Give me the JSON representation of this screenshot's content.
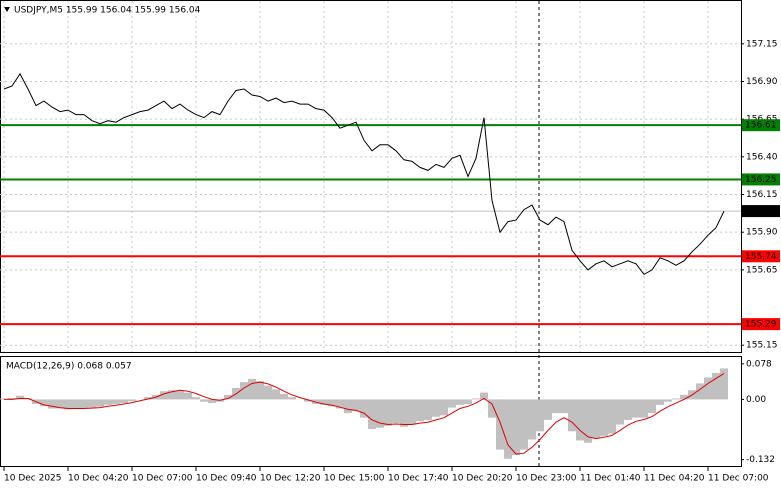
{
  "chart_data": [
    {
      "type": "line",
      "title": "USDJPY,M5 155.99 156.04 155.99 156.04",
      "color": "#000000",
      "grid": true,
      "x": [
        0,
        4,
        8,
        12,
        16,
        20,
        24,
        28,
        32,
        36,
        40,
        44,
        48,
        52,
        56,
        60,
        64,
        68,
        72,
        76,
        80,
        84,
        88,
        92,
        96,
        100,
        104,
        108,
        112,
        116,
        120,
        124,
        128,
        132,
        136,
        140,
        144,
        148,
        152,
        156,
        160,
        164,
        168,
        172,
        176,
        180,
        184,
        188,
        192,
        196,
        200,
        204,
        208,
        212,
        216,
        220,
        224,
        228,
        232,
        236,
        240,
        244,
        248,
        252,
        256,
        260,
        264,
        268,
        272,
        276,
        280,
        284,
        288,
        292,
        296,
        300,
        304,
        308,
        312,
        316,
        320,
        324,
        328,
        332,
        336,
        340,
        344,
        348,
        352,
        356,
        360
      ],
      "values": [
        156.85,
        156.87,
        156.95,
        156.85,
        156.74,
        156.77,
        156.73,
        156.7,
        156.71,
        156.68,
        156.68,
        156.64,
        156.62,
        156.64,
        156.63,
        156.66,
        156.68,
        156.7,
        156.71,
        156.74,
        156.77,
        156.72,
        156.75,
        156.71,
        156.68,
        156.66,
        156.7,
        156.68,
        156.77,
        156.84,
        156.85,
        156.81,
        156.8,
        156.77,
        156.79,
        156.76,
        156.77,
        156.75,
        156.75,
        156.72,
        156.71,
        156.66,
        156.59,
        156.61,
        156.63,
        156.51,
        156.44,
        156.48,
        156.48,
        156.44,
        156.38,
        156.37,
        156.33,
        156.31,
        156.35,
        156.33,
        156.39,
        156.41,
        156.27,
        156.39,
        156.66,
        156.11,
        155.9,
        155.97,
        155.98,
        156.05,
        156.08,
        155.98,
        155.95,
        156.0,
        155.97,
        155.78,
        155.71,
        155.65,
        155.69,
        155.71,
        155.67,
        155.69,
        155.71,
        155.69,
        155.62,
        155.65,
        155.73,
        155.71,
        155.68,
        155.71,
        155.77,
        155.82,
        155.88,
        155.93,
        156.04
      ],
      "xlim": [
        -2,
        368.5
      ],
      "ylim": [
        155.105,
        157.434
      ],
      "xticks": [
        {
          "value": 0,
          "label": "10 Dec 2025"
        },
        {
          "value": 32,
          "label": "10 Dec 04:20"
        },
        {
          "value": 64,
          "label": "10 Dec 07:00"
        },
        {
          "value": 96,
          "label": "10 Dec 09:40"
        },
        {
          "value": 128,
          "label": "10 Dec 12:20"
        },
        {
          "value": 160,
          "label": "10 Dec 15:00"
        },
        {
          "value": 192,
          "label": "10 Dec 17:40"
        },
        {
          "value": 224,
          "label": "10 Dec 20:20"
        },
        {
          "value": 256,
          "label": "10 Dec 23:00"
        },
        {
          "value": 288,
          "label": "11 Dec 01:40"
        },
        {
          "value": 320,
          "label": "11 Dec 04:20"
        },
        {
          "value": 352,
          "label": "11 Dec 07:00"
        }
      ],
      "yticks": [
        157.15,
        {
          "value": 156.9,
          "label": "156.90"
        },
        156.65,
        {
          "value": 156.4,
          "label": "156.40"
        },
        156.15,
        {
          "value": 155.9,
          "label": "155.90"
        },
        155.65,
        155.15
      ],
      "hlines": [
        {
          "value": 156.61,
          "color": "#008000"
        },
        {
          "value": 156.25,
          "color": "#008000"
        },
        {
          "value": 155.74,
          "color": "#ff0000"
        },
        {
          "value": 155.29,
          "color": "#ff0000"
        }
      ],
      "current_price": 156.04
    },
    {
      "type": "macd",
      "title": "MACD(12,26,9) 0.068 0.057",
      "x": [
        0,
        4,
        8,
        12,
        16,
        20,
        24,
        28,
        32,
        36,
        40,
        44,
        48,
        52,
        56,
        60,
        64,
        68,
        72,
        76,
        80,
        84,
        88,
        92,
        96,
        100,
        104,
        108,
        112,
        116,
        120,
        124,
        128,
        132,
        136,
        140,
        144,
        148,
        152,
        156,
        160,
        164,
        168,
        172,
        176,
        180,
        184,
        188,
        192,
        196,
        200,
        204,
        208,
        212,
        216,
        220,
        224,
        228,
        232,
        236,
        240,
        244,
        248,
        252,
        256,
        260,
        264,
        268,
        272,
        276,
        280,
        284,
        288,
        292,
        296,
        300,
        304,
        308,
        312,
        316,
        320,
        324,
        328,
        332,
        336,
        340,
        344,
        348,
        352,
        356,
        360
      ],
      "xlim": [
        -2,
        368.5
      ],
      "ylim": [
        -0.146,
        0.093
      ],
      "yticks": [
        0.078,
        {
          "value": 0,
          "label": "0.00"
        },
        -0.132
      ],
      "series": [
        {
          "type": "bar",
          "color": "#c0c0c0",
          "values": [
            0.002,
            0.003,
            0.008,
            0.003,
            -0.01,
            -0.015,
            -0.02,
            -0.02,
            -0.022,
            -0.02,
            -0.02,
            -0.018,
            -0.016,
            -0.012,
            -0.01,
            -0.008,
            -0.004,
            0,
            0.005,
            0.01,
            0.018,
            0.02,
            0.02,
            0.015,
            0.005,
            -0.005,
            -0.008,
            -0.005,
            0.01,
            0.025,
            0.038,
            0.045,
            0.04,
            0.03,
            0.022,
            0.012,
            0.005,
            0,
            -0.005,
            -0.01,
            -0.012,
            -0.015,
            -0.02,
            -0.03,
            -0.025,
            -0.04,
            -0.065,
            -0.062,
            -0.058,
            -0.052,
            -0.06,
            -0.055,
            -0.048,
            -0.045,
            -0.038,
            -0.035,
            -0.018,
            -0.012,
            -0.01,
            0.002,
            0.015,
            -0.04,
            -0.11,
            -0.13,
            -0.122,
            -0.11,
            -0.088,
            -0.07,
            -0.045,
            -0.03,
            -0.03,
            -0.07,
            -0.09,
            -0.095,
            -0.085,
            -0.08,
            -0.075,
            -0.055,
            -0.045,
            -0.04,
            -0.04,
            -0.03,
            -0.012,
            -0.005,
            0.002,
            0.01,
            0.02,
            0.035,
            0.048,
            0.058,
            0.068
          ]
        },
        {
          "type": "line",
          "color": "#e00000",
          "values": [
            0,
            0,
            0.002,
            0.002,
            -0.005,
            -0.012,
            -0.015,
            -0.018,
            -0.02,
            -0.02,
            -0.02,
            -0.019,
            -0.018,
            -0.015,
            -0.013,
            -0.01,
            -0.007,
            -0.003,
            0.001,
            0.005,
            0.012,
            0.017,
            0.02,
            0.018,
            0.013,
            0.006,
            0,
            -0.002,
            0.002,
            0.012,
            0.025,
            0.035,
            0.038,
            0.034,
            0.027,
            0.018,
            0.01,
            0.004,
            -0.001,
            -0.006,
            -0.01,
            -0.013,
            -0.017,
            -0.022,
            -0.024,
            -0.03,
            -0.045,
            -0.052,
            -0.055,
            -0.054,
            -0.055,
            -0.055,
            -0.052,
            -0.05,
            -0.045,
            -0.04,
            -0.03,
            -0.02,
            -0.015,
            -0.008,
            0.002,
            -0.01,
            -0.05,
            -0.1,
            -0.12,
            -0.118,
            -0.105,
            -0.088,
            -0.068,
            -0.05,
            -0.04,
            -0.05,
            -0.068,
            -0.082,
            -0.086,
            -0.083,
            -0.079,
            -0.068,
            -0.056,
            -0.048,
            -0.044,
            -0.038,
            -0.026,
            -0.016,
            -0.008,
            0,
            0.01,
            0.022,
            0.035,
            0.046,
            0.057
          ]
        }
      ]
    }
  ]
}
